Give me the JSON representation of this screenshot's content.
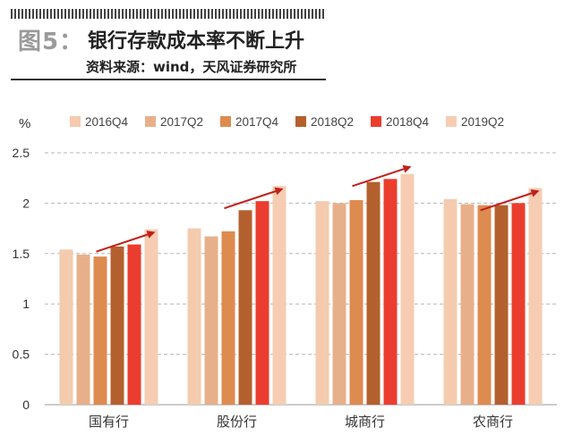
{
  "header": {
    "figure_label": "图5：",
    "title": "银行存款成本率不断上升",
    "source": "资料来源：wind，天风证券研究所"
  },
  "chart_data": {
    "type": "bar",
    "unit_label": "%",
    "categories": [
      "国有行",
      "股份行",
      "城商行",
      "农商行"
    ],
    "series": [
      {
        "name": "2016Q4",
        "color": "#F4CBAE",
        "values": [
          1.54,
          1.75,
          2.02,
          2.04
        ]
      },
      {
        "name": "2017Q2",
        "color": "#E8B08A",
        "values": [
          1.49,
          1.67,
          2.0,
          1.99
        ]
      },
      {
        "name": "2017Q4",
        "color": "#DE8B50",
        "values": [
          1.47,
          1.72,
          2.03,
          1.98
        ]
      },
      {
        "name": "2018Q2",
        "color": "#B4602E",
        "values": [
          1.57,
          1.93,
          2.21,
          1.98
        ]
      },
      {
        "name": "2018Q4",
        "color": "#EB3D2E",
        "values": [
          1.59,
          2.02,
          2.24,
          2.0
        ]
      },
      {
        "name": "2019Q2",
        "color": "#F6CDB2",
        "values": [
          1.74,
          2.17,
          2.29,
          2.15
        ]
      }
    ],
    "ylim": [
      0,
      2.5
    ],
    "yticks": [
      "0",
      "0.5",
      "1",
      "1.5",
      "2",
      "2.5"
    ],
    "ytick_values": [
      0,
      0.5,
      1,
      1.5,
      2,
      2.5
    ],
    "grid": true,
    "legend_position": "top",
    "trend_arrows": true,
    "arrow_color": "#C0201A"
  }
}
